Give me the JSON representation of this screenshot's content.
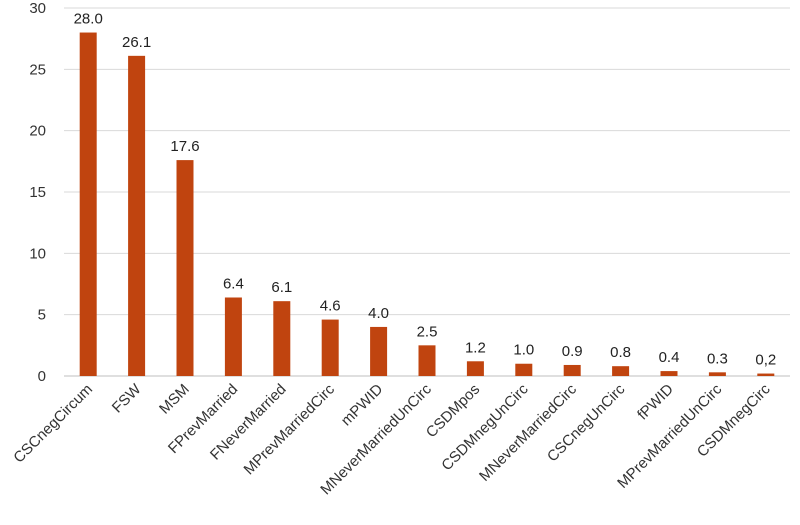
{
  "chart_data": {
    "type": "bar",
    "title": "",
    "xlabel": "",
    "ylabel": "",
    "ylim": [
      0,
      30
    ],
    "yticks": [
      0,
      5,
      10,
      15,
      20,
      25,
      30
    ],
    "grid": true,
    "bar_color": "#C0440F",
    "categories": [
      "CSCnegCircum",
      "FSW",
      "MSM",
      "FPrevMarried",
      "FNeverMarried",
      "MPrevMarriedCirc",
      "mPWID",
      "MNeverMarriedUnCirc",
      "CSDMpos",
      "CSDMnegUnCirc",
      "MNeverMarriedCirc",
      "CSCnegUnCirc",
      "fPWID",
      "MPrevMarriedUnCirc",
      "CSDMnegCirc"
    ],
    "values": [
      28.0,
      26.1,
      17.6,
      6.4,
      6.1,
      4.6,
      4.0,
      2.5,
      1.2,
      1.0,
      0.9,
      0.8,
      0.4,
      0.3,
      0.2
    ],
    "data_labels": [
      "28.0",
      "26.1",
      "17.6",
      "6.4",
      "6.1",
      "4.6",
      "4.0",
      "2.5",
      "1.2",
      "1.0",
      "0.9",
      "0.8",
      "0.4",
      "0.3",
      "0,2"
    ]
  }
}
